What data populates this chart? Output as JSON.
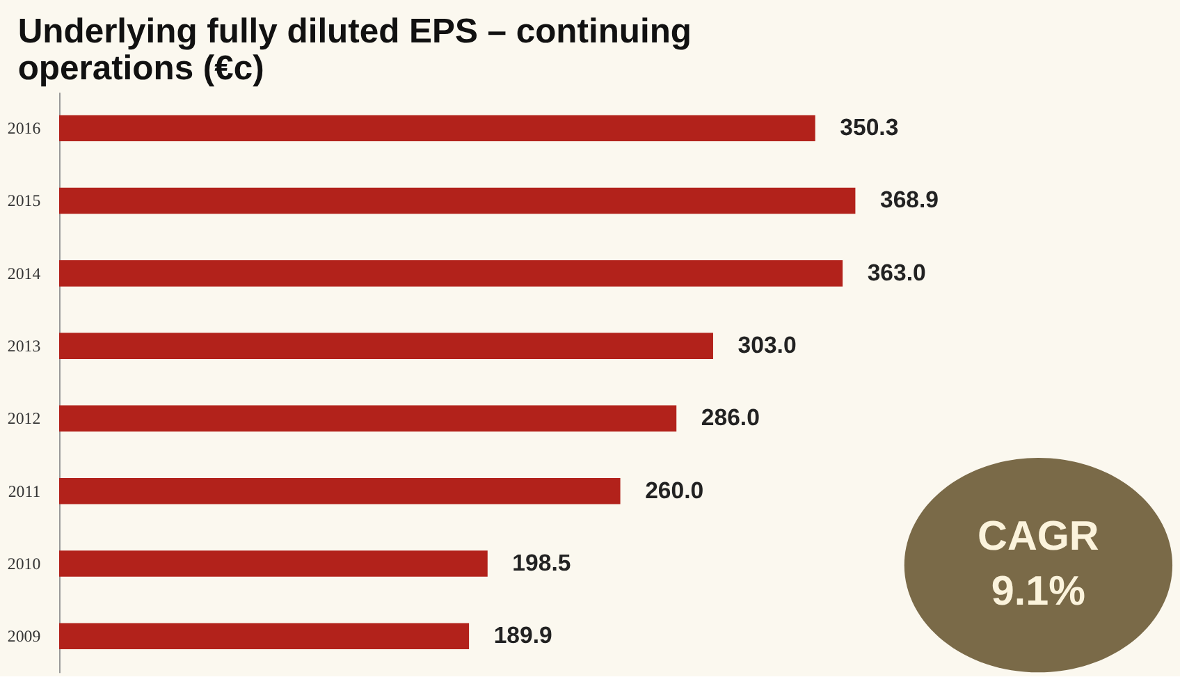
{
  "chart_data": {
    "type": "bar",
    "orientation": "horizontal",
    "title": "Underlying fully diluted EPS – continuing operations (€c)",
    "categories": [
      "2016",
      "2015",
      "2014",
      "2013",
      "2012",
      "2011",
      "2010",
      "2009"
    ],
    "values": [
      350.3,
      368.9,
      363.0,
      303.0,
      286.0,
      260.0,
      198.5,
      189.9
    ],
    "color": "#b2221b",
    "value_labels": [
      "350.3",
      "368.9",
      "363.0",
      "303.0",
      "286.0",
      "260.0",
      "198.5",
      "189.9"
    ],
    "annotations": [
      "CAGR 9.1%"
    ]
  }
}
